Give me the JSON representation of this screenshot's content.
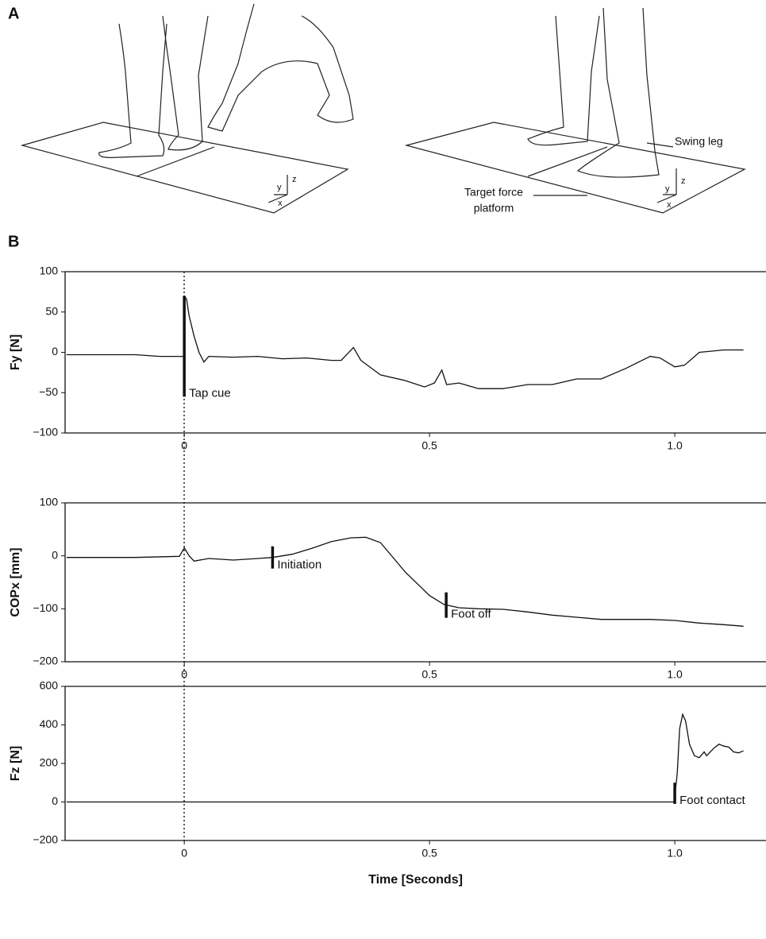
{
  "panel_labels": [
    "A",
    "B"
  ],
  "illustration": {
    "annotations": [
      "Swing leg",
      "Target force",
      "platform"
    ],
    "axis_labels_left": [
      "z",
      "y",
      "x"
    ],
    "axis_labels_right": [
      "z",
      "y",
      "x"
    ]
  },
  "chart_data": [
    {
      "type": "line",
      "y_label": "Fy [N]",
      "color": "#111111",
      "xlim": [
        -0.243,
        1.186
      ],
      "xticks": [
        0,
        0.5,
        {
          "value": 1,
          "label": "1.0"
        }
      ],
      "ylim": [
        -100,
        100
      ],
      "yticks": [
        {
          "value": -100,
          "label": "−100"
        },
        {
          "value": -50,
          "label": "−50"
        },
        0,
        50,
        100
      ],
      "x": [
        -0.24,
        -0.1,
        -0.05,
        -0.01,
        0,
        0.001,
        0.005,
        0.01,
        0.02,
        0.03,
        0.04,
        0.05,
        0.1,
        0.15,
        0.2,
        0.25,
        0.3,
        0.32,
        0.345,
        0.36,
        0.4,
        0.45,
        0.49,
        0.51,
        0.525,
        0.535,
        0.56,
        0.6,
        0.65,
        0.7,
        0.75,
        0.8,
        0.85,
        0.9,
        0.95,
        0.97,
        1.0,
        1.02,
        1.05,
        1.1,
        1.14
      ],
      "values": [
        -3,
        -3,
        -5,
        -5,
        -5,
        70,
        65,
        45,
        20,
        0,
        -12,
        -5,
        -6,
        -5,
        -8,
        -7,
        -10,
        -10,
        6,
        -10,
        -28,
        -35,
        -43,
        -38,
        -22,
        -40,
        -38,
        -45,
        -45,
        -40,
        -40,
        -33,
        -33,
        -20,
        -5,
        -7,
        -18,
        -16,
        0,
        3,
        3
      ],
      "annotations": [
        {
          "text": "Tap cue",
          "x": 0,
          "y": [
            70,
            -55
          ]
        }
      ]
    },
    {
      "type": "line",
      "y_label": "COPx [mm]",
      "color": "#111111",
      "xlim": [
        -0.243,
        1.186
      ],
      "xticks": [
        0,
        0.5,
        {
          "value": 1,
          "label": "1.0"
        }
      ],
      "ylim": [
        -200,
        100
      ],
      "yticks": [
        {
          "value": -200,
          "label": "−200"
        },
        {
          "value": -100,
          "label": "−100"
        },
        0,
        100
      ],
      "x": [
        -0.24,
        -0.1,
        -0.01,
        0,
        0.01,
        0.02,
        0.05,
        0.1,
        0.15,
        0.18,
        0.22,
        0.26,
        0.3,
        0.34,
        0.37,
        0.4,
        0.45,
        0.5,
        0.53,
        0.56,
        0.6,
        0.65,
        0.7,
        0.75,
        0.8,
        0.85,
        0.9,
        0.95,
        1.0,
        1.05,
        1.1,
        1.14
      ],
      "values": [
        -3,
        -3,
        -1,
        15,
        0,
        -10,
        -5,
        -8,
        -5,
        -3,
        3,
        14,
        27,
        34,
        35,
        25,
        -30,
        -75,
        -92,
        -98,
        -100,
        -101,
        -106,
        -112,
        -116,
        -120,
        -120,
        -120,
        -122,
        -127,
        -130,
        -133
      ],
      "annotations": [
        {
          "text": "Initiation",
          "x": 0.18,
          "y": [
            18,
            -24
          ]
        },
        {
          "text": "Foot off",
          "x": 0.534,
          "y": [
            -69,
            -117
          ]
        }
      ]
    },
    {
      "type": "line",
      "y_label": "Fz [N]",
      "x_label": "Time [Seconds]",
      "color": "#111111",
      "xlim": [
        -0.243,
        1.186
      ],
      "xticks": [
        0,
        0.5,
        {
          "value": 1,
          "label": "1.0"
        }
      ],
      "ylim": [
        -200,
        600
      ],
      "yticks": [
        {
          "value": -200,
          "label": "−200"
        },
        0,
        200,
        400,
        600
      ],
      "x": [
        -0.24,
        0.999,
        1.005,
        1.01,
        1.016,
        1.022,
        1.03,
        1.04,
        1.05,
        1.06,
        1.065,
        1.08,
        1.09,
        1.1,
        1.11,
        1.12,
        1.13,
        1.14
      ],
      "values": [
        0,
        0,
        150,
        380,
        455,
        420,
        300,
        240,
        230,
        260,
        240,
        280,
        300,
        290,
        285,
        260,
        255,
        265
      ],
      "annotations": [
        {
          "text": "Foot contact",
          "x": 1.0,
          "y": [
            100,
            -10
          ]
        }
      ]
    }
  ]
}
